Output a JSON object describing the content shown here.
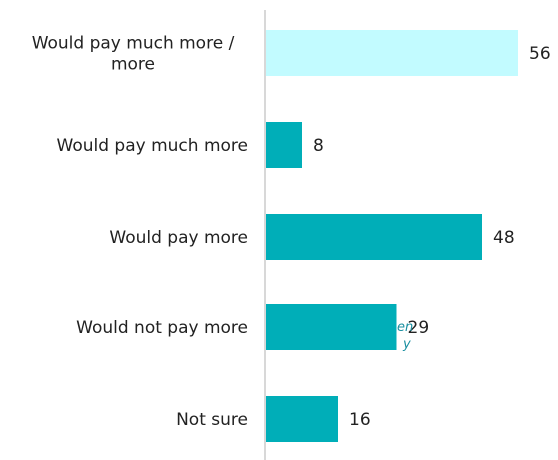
{
  "chart_data": {
    "type": "bar",
    "orientation": "horizontal",
    "categories": [
      [
        "Would pay much more /",
        "more"
      ],
      [
        "Would pay much more"
      ],
      [
        "Would pay more"
      ],
      [
        "Would not pay more"
      ],
      [
        "Not sure"
      ]
    ],
    "values": [
      56,
      8,
      48,
      29,
      16
    ],
    "xlim": [
      0,
      60
    ],
    "grid": false,
    "colors": [
      "#c2fbff",
      "#00aeb8",
      "#00aeb8",
      "#00aeb8",
      "#00aeb8"
    ],
    "axis_color": "#cccccc"
  },
  "side_note": [
    "en",
    "y"
  ]
}
